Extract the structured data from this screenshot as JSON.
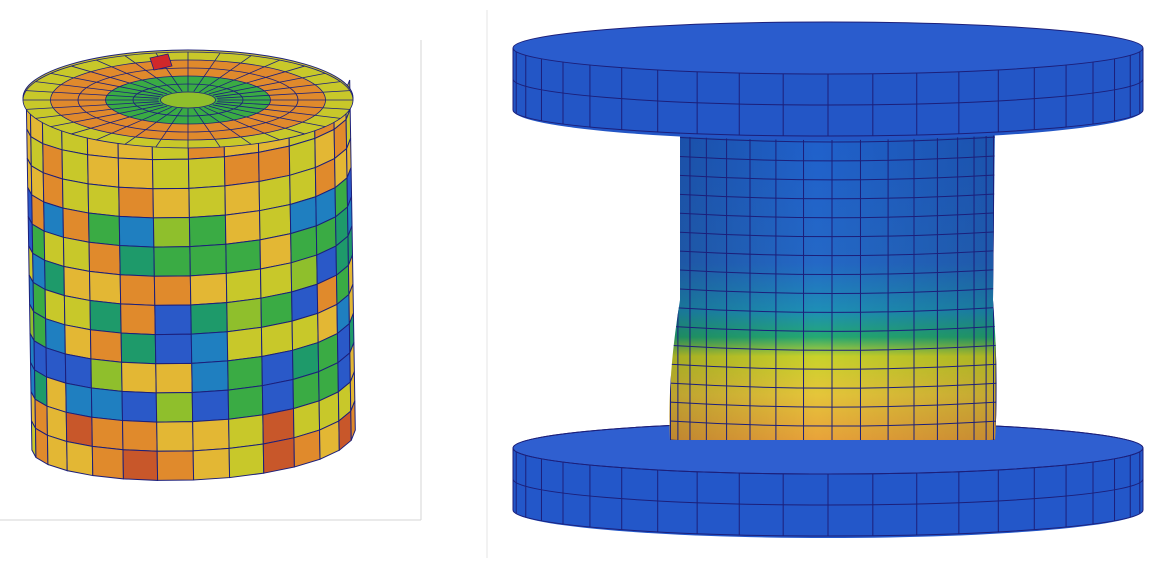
{
  "figure": {
    "panels": [
      {
        "name": "cylinder-mesh-random-coloring"
      },
      {
        "name": "spool-mesh-banded-coloring"
      }
    ],
    "colors": {
      "background": "#ffffff",
      "mesh_edge": "#1c1f7a",
      "frame": "#cfcfcf",
      "palette": [
        "#2a59c8",
        "#1f7fc0",
        "#1e9a6a",
        "#3aab44",
        "#8fbf2c",
        "#c8c82a",
        "#e3b734",
        "#e08a2c",
        "#c8572a",
        "#d0282a"
      ]
    }
  }
}
